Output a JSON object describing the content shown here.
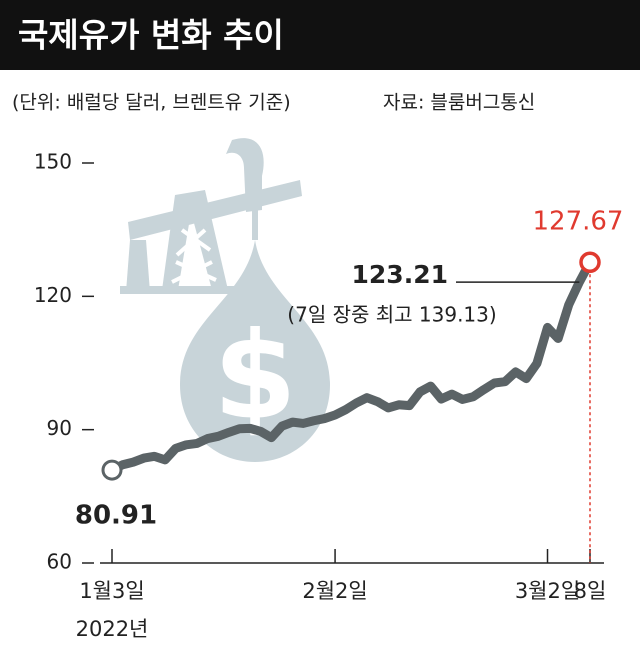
{
  "chart_data": {
    "type": "line",
    "title": "국제유가 변화 추이",
    "subtitle": "(단위: 배럴당 달러, 브렌트유 기준)",
    "source": "자료: 블룸버그통신",
    "x_year_label": "2022년",
    "annotation": "(7일 장중 최고 139.13)",
    "categories": [
      "1월3일",
      null,
      null,
      null,
      null,
      null,
      null,
      null,
      null,
      null,
      null,
      null,
      null,
      null,
      null,
      null,
      null,
      null,
      null,
      null,
      null,
      "2월2일",
      null,
      null,
      null,
      null,
      null,
      null,
      null,
      null,
      null,
      null,
      null,
      null,
      null,
      null,
      null,
      null,
      null,
      null,
      null,
      "3월2일",
      null,
      null,
      null,
      "8일"
    ],
    "values": [
      80.91,
      82.1,
      82.7,
      83.6,
      84.0,
      83.2,
      85.8,
      86.6,
      86.9,
      88.0,
      88.5,
      89.4,
      90.2,
      90.3,
      89.6,
      88.2,
      90.8,
      91.7,
      91.4,
      92.0,
      92.5,
      93.3,
      94.5,
      96.0,
      97.2,
      96.3,
      94.9,
      95.6,
      95.4,
      98.5,
      99.8,
      96.9,
      98.0,
      96.8,
      97.4,
      99.0,
      100.5,
      100.8,
      103.0,
      101.5,
      104.9,
      113.0,
      110.5,
      118.1,
      123.21,
      127.67
    ],
    "color": "#5b6366",
    "highlight_color": "#e03a2f",
    "ylim": [
      60,
      150
    ],
    "yticks": [
      60,
      90,
      120,
      150
    ]
  }
}
